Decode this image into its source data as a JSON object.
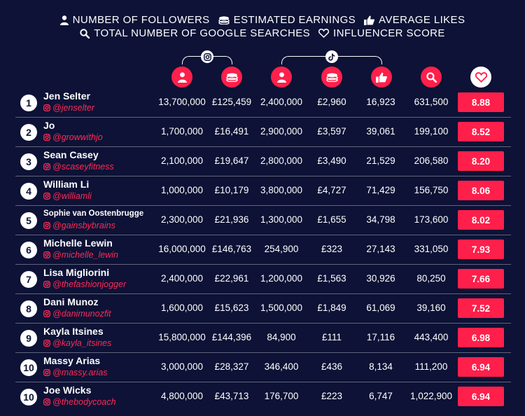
{
  "legend": {
    "followers": "NUMBER OF FOLLOWERS",
    "earnings": "ESTIMATED EARNINGS",
    "likes": "AVERAGE LIKES",
    "searches": "TOTAL NUMBER OF GOOGLE SEARCHES",
    "score": "INFLUENCER SCORE"
  },
  "platforms": [
    "instagram-icon",
    "tiktok-icon"
  ],
  "colors": {
    "background": "#0d1236",
    "accent": "#ff1f4b",
    "text": "#ffffff"
  },
  "rows": [
    {
      "rank": "1",
      "name": "Jen Selter",
      "handle": "@jenselter",
      "ig_followers": "13,700,000",
      "ig_earnings": "£125,459",
      "tt_followers": "2,400,000",
      "tt_earnings": "£2,960",
      "likes": "16,923",
      "searches": "631,500",
      "score": "8.88"
    },
    {
      "rank": "2",
      "name": "Jo",
      "handle": "@growwithjo",
      "ig_followers": "1,700,000",
      "ig_earnings": "£16,491",
      "tt_followers": "2,900,000",
      "tt_earnings": "£3,597",
      "likes": "39,061",
      "searches": "199,100",
      "score": "8.52"
    },
    {
      "rank": "3",
      "name": "Sean Casey",
      "handle": "@scaseyfitness",
      "ig_followers": "2,100,000",
      "ig_earnings": "£19,647",
      "tt_followers": "2,800,000",
      "tt_earnings": "£3,490",
      "likes": "21,529",
      "searches": "206,580",
      "score": "8.20"
    },
    {
      "rank": "4",
      "name": "William Li",
      "handle": "@williamli",
      "ig_followers": "1,000,000",
      "ig_earnings": "£10,179",
      "tt_followers": "3,800,000",
      "tt_earnings": "£4,727",
      "likes": "71,429",
      "searches": "156,750",
      "score": "8.06"
    },
    {
      "rank": "5",
      "name": "Sophie van Oostenbrugge",
      "handle": "@gainsbybrains",
      "ig_followers": "2,300,000",
      "ig_earnings": "£21,936",
      "tt_followers": "1,300,000",
      "tt_earnings": "£1,655",
      "likes": "34,798",
      "searches": "173,600",
      "score": "8.02"
    },
    {
      "rank": "6",
      "name": "Michelle Lewin",
      "handle": "@michelle_lewin",
      "ig_followers": "16,000,000",
      "ig_earnings": "£146,763",
      "tt_followers": "254,900",
      "tt_earnings": "£323",
      "likes": "27,143",
      "searches": "331,050",
      "score": "7.93"
    },
    {
      "rank": "7",
      "name": "Lisa Migliorini",
      "handle": "@thefashionjogger",
      "ig_followers": "2,400,000",
      "ig_earnings": "£22,961",
      "tt_followers": "1,200,000",
      "tt_earnings": "£1,563",
      "likes": "30,926",
      "searches": "80,250",
      "score": "7.66"
    },
    {
      "rank": "8",
      "name": "Dani Munoz",
      "handle": "@danimunozfit",
      "ig_followers": "1,600,000",
      "ig_earnings": "£15,623",
      "tt_followers": "1,500,000",
      "tt_earnings": "£1,849",
      "likes": "61,069",
      "searches": "39,160",
      "score": "7.52"
    },
    {
      "rank": "9",
      "name": "Kayla Itsines",
      "handle": "@kayla_itsines",
      "ig_followers": "15,800,000",
      "ig_earnings": "£144,396",
      "tt_followers": "84,900",
      "tt_earnings": "£111",
      "likes": "17,116",
      "searches": "443,400",
      "score": "6.98"
    },
    {
      "rank": "10",
      "name": "Massy Arias",
      "handle": "@massy.arias",
      "ig_followers": "3,000,000",
      "ig_earnings": "£28,327",
      "tt_followers": "346,400",
      "tt_earnings": "£436",
      "likes": "8,134",
      "searches": "111,200",
      "score": "6.94"
    },
    {
      "rank": "10",
      "name": "Joe Wicks",
      "handle": "@thebodycoach",
      "ig_followers": "4,800,000",
      "ig_earnings": "£43,713",
      "tt_followers": "176,700",
      "tt_earnings": "£223",
      "likes": "6,747",
      "searches": "1,022,900",
      "score": "6.94"
    }
  ]
}
